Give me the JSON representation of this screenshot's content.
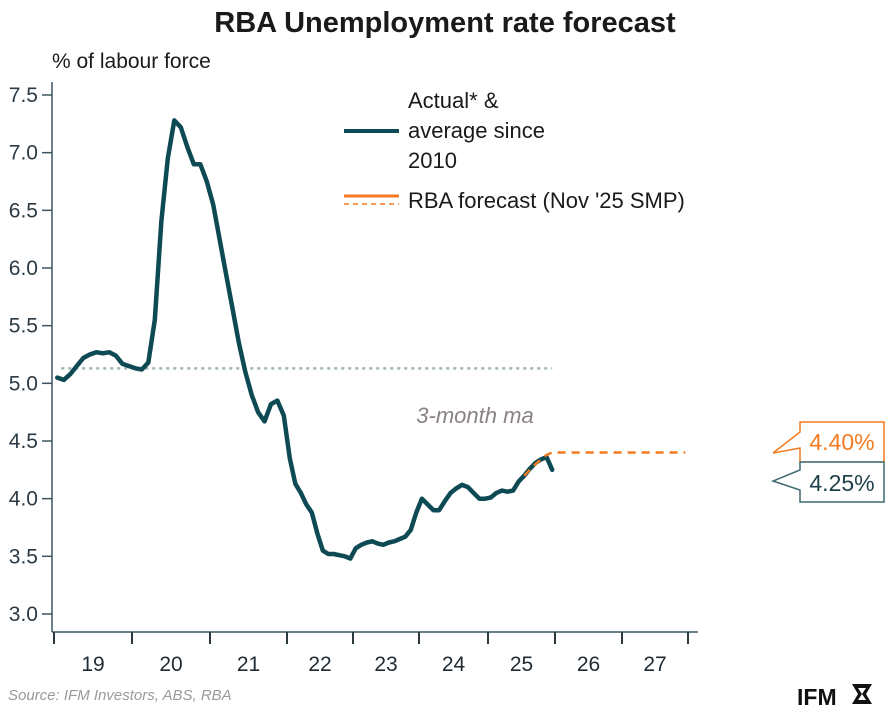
{
  "chart_data": {
    "type": "line",
    "title": "RBA Unemployment rate forecast",
    "ylabel": "% of labour force",
    "xlabel": "",
    "ylim": [
      3.0,
      7.5
    ],
    "yticks": [
      "3.0",
      "3.5",
      "4.0",
      "4.5",
      "5.0",
      "5.5",
      "6.0",
      "6.5",
      "7.0",
      "7.5"
    ],
    "xticks": [
      "19",
      "20",
      "21",
      "22",
      "23",
      "24",
      "25",
      "26",
      "27"
    ],
    "xlim": [
      "2019-01",
      "2028-12"
    ],
    "grid": false,
    "legend_placement": "top-right",
    "annotation": "3-month ma",
    "series": [
      {
        "name": "Actual* & average since 2010",
        "color": "#0d4a53",
        "points": [
          [
            "2019-01",
            5.05
          ],
          [
            "2019-02",
            5.03
          ],
          [
            "2019-03",
            5.08
          ],
          [
            "2019-04",
            5.15
          ],
          [
            "2019-05",
            5.22
          ],
          [
            "2019-06",
            5.25
          ],
          [
            "2019-07",
            5.27
          ],
          [
            "2019-08",
            5.26
          ],
          [
            "2019-09",
            5.27
          ],
          [
            "2019-10",
            5.24
          ],
          [
            "2019-11",
            5.17
          ],
          [
            "2019-12",
            5.15
          ],
          [
            "2020-01",
            5.13
          ],
          [
            "2020-02",
            5.12
          ],
          [
            "2020-03",
            5.18
          ],
          [
            "2020-04",
            5.55
          ],
          [
            "2020-05",
            6.4
          ],
          [
            "2020-06",
            6.95
          ],
          [
            "2020-07",
            7.28
          ],
          [
            "2020-08",
            7.22
          ],
          [
            "2020-09",
            7.05
          ],
          [
            "2020-10",
            6.9
          ],
          [
            "2020-11",
            6.9
          ],
          [
            "2020-12",
            6.75
          ],
          [
            "2021-01",
            6.55
          ],
          [
            "2021-02",
            6.25
          ],
          [
            "2021-03",
            5.95
          ],
          [
            "2021-04",
            5.65
          ],
          [
            "2021-05",
            5.35
          ],
          [
            "2021-06",
            5.1
          ],
          [
            "2021-07",
            4.9
          ],
          [
            "2021-08",
            4.75
          ],
          [
            "2021-09",
            4.67
          ],
          [
            "2021-10",
            4.82
          ],
          [
            "2021-11",
            4.85
          ],
          [
            "2021-12",
            4.72
          ],
          [
            "2022-01",
            4.35
          ],
          [
            "2022-02",
            4.13
          ],
          [
            "2022-03",
            4.05
          ],
          [
            "2022-04",
            3.95
          ],
          [
            "2022-05",
            3.88
          ],
          [
            "2022-06",
            3.7
          ],
          [
            "2022-07",
            3.55
          ],
          [
            "2022-08",
            3.52
          ],
          [
            "2022-09",
            3.52
          ],
          [
            "2022-10",
            3.51
          ],
          [
            "2022-11",
            3.5
          ],
          [
            "2022-12",
            3.48
          ],
          [
            "2023-01",
            3.57
          ],
          [
            "2023-02",
            3.6
          ],
          [
            "2023-03",
            3.62
          ],
          [
            "2023-04",
            3.63
          ],
          [
            "2023-05",
            3.61
          ],
          [
            "2023-06",
            3.6
          ],
          [
            "2023-07",
            3.62
          ],
          [
            "2023-08",
            3.63
          ],
          [
            "2023-09",
            3.65
          ],
          [
            "2023-10",
            3.67
          ],
          [
            "2023-11",
            3.73
          ],
          [
            "2023-12",
            3.88
          ],
          [
            "2024-01",
            4.0
          ],
          [
            "2024-02",
            3.95
          ],
          [
            "2024-03",
            3.9
          ],
          [
            "2024-04",
            3.9
          ],
          [
            "2024-05",
            3.98
          ],
          [
            "2024-06",
            4.05
          ],
          [
            "2024-07",
            4.09
          ],
          [
            "2024-08",
            4.12
          ],
          [
            "2024-09",
            4.1
          ],
          [
            "2024-10",
            4.05
          ],
          [
            "2024-11",
            4.0
          ],
          [
            "2024-12",
            4.0
          ],
          [
            "2025-01",
            4.01
          ],
          [
            "2025-02",
            4.05
          ],
          [
            "2025-03",
            4.07
          ],
          [
            "2025-04",
            4.06
          ],
          [
            "2025-05",
            4.07
          ],
          [
            "2025-06",
            4.15
          ],
          [
            "2025-07",
            4.2
          ],
          [
            "2025-08",
            4.26
          ],
          [
            "2025-09",
            4.31
          ],
          [
            "2025-10",
            4.34
          ],
          [
            "2025-11",
            4.36
          ],
          [
            "2025-12",
            4.25
          ]
        ],
        "average_since_2010": 5.13,
        "average_range": [
          "2019-01",
          "2025-12"
        ],
        "end_label": "4.25%"
      },
      {
        "name": "RBA forecast (Nov '25 SMP)",
        "color": "#f47b20",
        "style": "dashed",
        "points": [
          [
            "2025-07",
            4.2
          ],
          [
            "2025-09",
            4.3
          ],
          [
            "2025-11",
            4.38
          ],
          [
            "2025-12",
            4.4
          ],
          [
            "2028-12",
            4.4
          ]
        ],
        "end_label": "4.40%"
      }
    ],
    "legend": [
      {
        "label_lines": [
          "Actual* &",
          "average since",
          "2010"
        ],
        "color": "#0d4a53"
      },
      {
        "label_lines": [
          "RBA forecast (Nov '25 SMP)"
        ],
        "color": "#f47b20"
      }
    ],
    "source": "Source: IFM Investors, ABS, RBA",
    "logo": "IFM"
  }
}
